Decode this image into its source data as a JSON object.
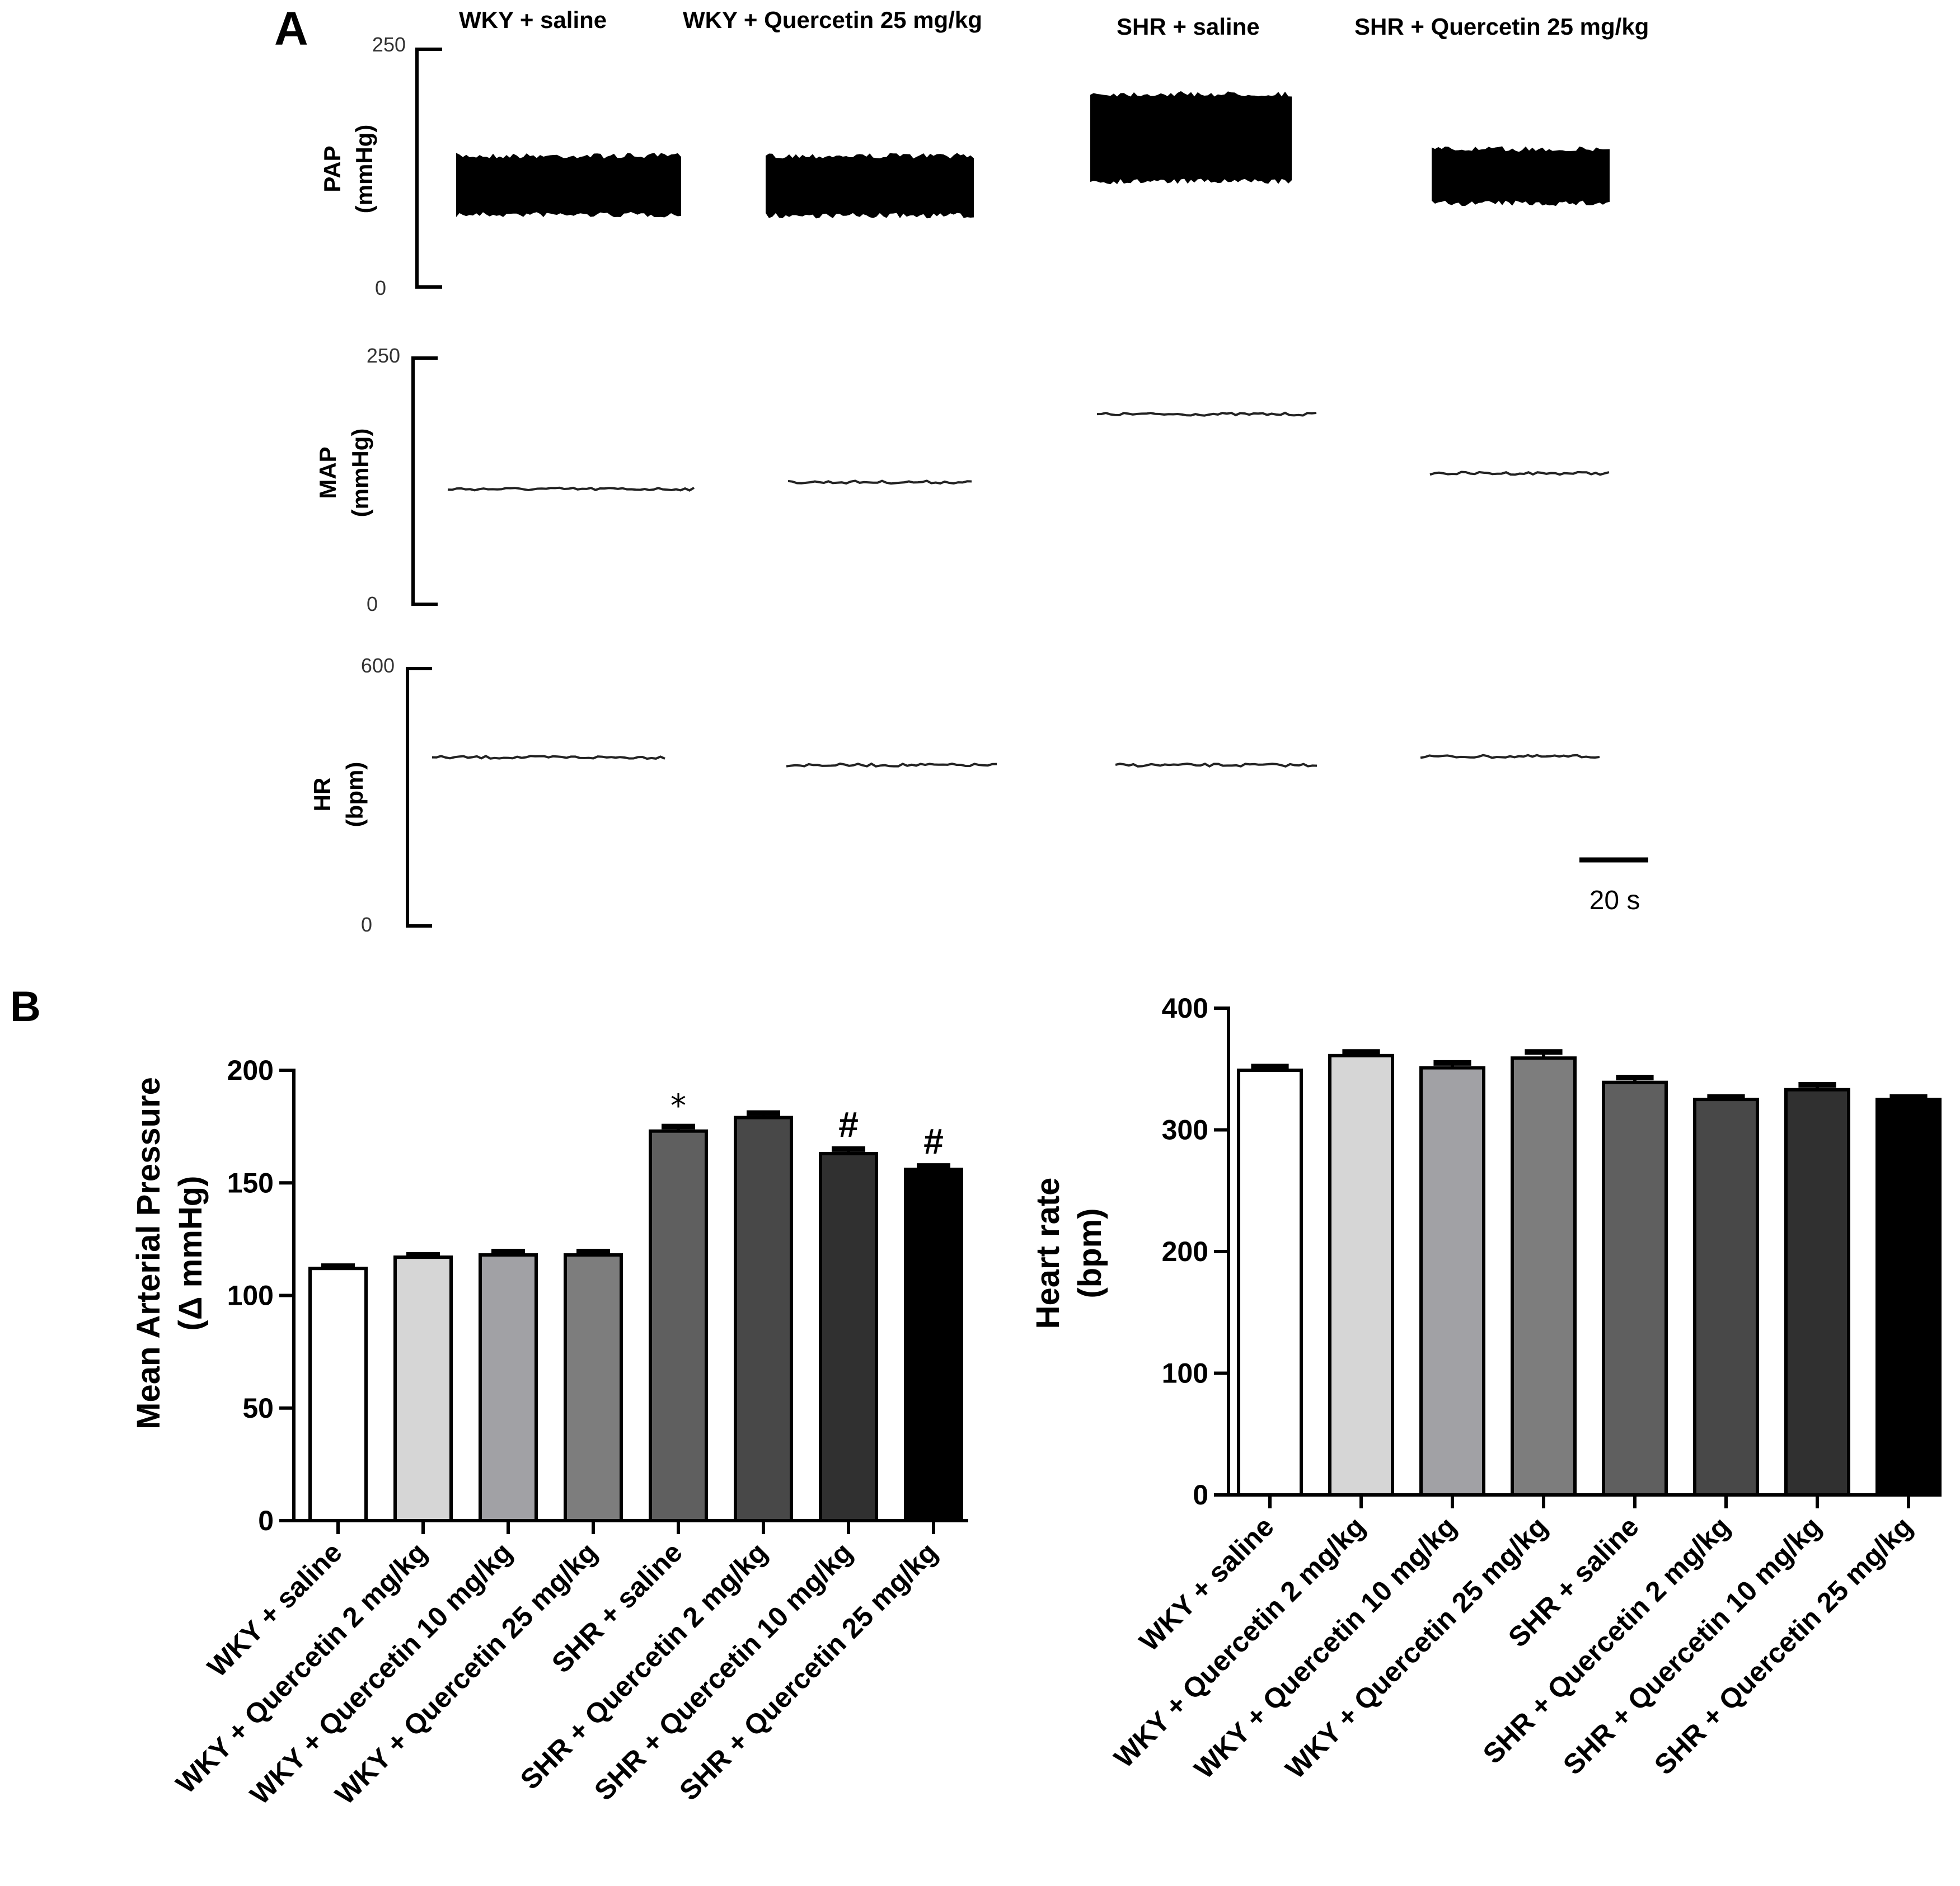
{
  "panel_a": {
    "label": "A",
    "group_labels": [
      "WKY + saline",
      "WKY + Quercetin 25 mg/kg",
      "SHR + saline",
      "SHR + Quercetin 25 mg/kg"
    ],
    "traces": [
      {
        "name": "PAP",
        "unit": "(mmHg)",
        "ymax_label": "250",
        "ymin_label": "0",
        "ylim": [
          0,
          250
        ]
      },
      {
        "name": "MAP",
        "unit": "(mmHg)",
        "ymax_label": "250",
        "ymin_label": "0",
        "ylim": [
          0,
          250
        ]
      },
      {
        "name": "HR",
        "unit": "(bpm)",
        "ymax_label": "600",
        "ymin_label": "0",
        "ylim": [
          0,
          600
        ]
      }
    ],
    "scale_bar_label": "20 s"
  },
  "panel_b": {
    "label": "B"
  },
  "colors": {
    "bar_fills": [
      "#ffffff",
      "#d6d6d6",
      "#a1a1a5",
      "#7d7d7d",
      "#5f5f5f",
      "#484848",
      "#303030",
      "#000000"
    ],
    "axis": "#000000"
  },
  "chart_data": [
    {
      "type": "line",
      "panel": "A",
      "title": "PAP",
      "ylabel": "PAP (mmHg)",
      "ylim": [
        0,
        250
      ],
      "series": [
        {
          "name": "WKY + saline",
          "systolic": 138,
          "diastolic": 76
        },
        {
          "name": "WKY + Quercetin 25 mg/kg",
          "systolic": 138,
          "diastolic": 75
        },
        {
          "name": "SHR + saline",
          "systolic": 203,
          "diastolic": 111
        },
        {
          "name": "SHR + Quercetin 25 mg/kg",
          "systolic": 145,
          "diastolic": 88
        }
      ]
    },
    {
      "type": "line",
      "panel": "A",
      "title": "MAP",
      "ylabel": "MAP (mmHg)",
      "ylim": [
        0,
        250
      ],
      "series": [
        {
          "name": "WKY + saline",
          "value": 117
        },
        {
          "name": "WKY + Quercetin 25 mg/kg",
          "value": 124
        },
        {
          "name": "SHR + saline",
          "value": 193
        },
        {
          "name": "SHR + Quercetin 25 mg/kg",
          "value": 133
        }
      ]
    },
    {
      "type": "line",
      "panel": "A",
      "title": "HR",
      "ylabel": "HR (bpm)",
      "ylim": [
        0,
        600
      ],
      "series": [
        {
          "name": "WKY + saline",
          "value": 393
        },
        {
          "name": "WKY + Quercetin 25 mg/kg",
          "value": 375
        },
        {
          "name": "SHR + saline",
          "value": 375
        },
        {
          "name": "SHR + Quercetin 25 mg/kg",
          "value": 395
        }
      ]
    },
    {
      "type": "bar",
      "panel": "B",
      "categories": [
        "WKY + saline",
        "WKY + Quercetin 2 mg/kg",
        "WKY + Quercetin 10 mg/kg",
        "WKY + Quercetin 25 mg/kg",
        "SHR + saline",
        "SHR + Quercetin 2 mg/kg",
        "SHR + Quercetin 10 mg/kg",
        "SHR + Quercetin 25 mg/kg"
      ],
      "values": [
        112,
        117,
        118,
        118,
        173,
        179,
        163,
        156
      ],
      "errors": [
        1,
        1,
        1.5,
        1.5,
        2,
        2,
        2,
        1.5
      ],
      "annotations": [
        "",
        "",
        "",
        "",
        "*",
        "",
        "#",
        "#"
      ],
      "title": "",
      "xlabel": "",
      "ylabel": "Mean Arterial Pressure",
      "ylabel_sub": "(Δ mmHg)",
      "ylim": [
        0,
        200
      ],
      "yticks": [
        0,
        50,
        100,
        150,
        200
      ]
    },
    {
      "type": "bar",
      "panel": "B",
      "categories": [
        "WKY + saline",
        "WKY + Quercetin 2 mg/kg",
        "WKY + Quercetin 10 mg/kg",
        "WKY + Quercetin 25 mg/kg",
        "SHR + saline",
        "SHR + Quercetin 2 mg/kg",
        "SHR + Quercetin 10 mg/kg",
        "SHR + Quercetin 25 mg/kg"
      ],
      "values": [
        349,
        361,
        351,
        359,
        339,
        325,
        333,
        325
      ],
      "errors": [
        3,
        3,
        4,
        5,
        4,
        2,
        4,
        2
      ],
      "title": "",
      "xlabel": "",
      "ylabel": "Heart rate",
      "ylabel_sub": "(bpm)",
      "ylim": [
        0,
        400
      ],
      "yticks": [
        0,
        100,
        200,
        300,
        400
      ]
    }
  ]
}
